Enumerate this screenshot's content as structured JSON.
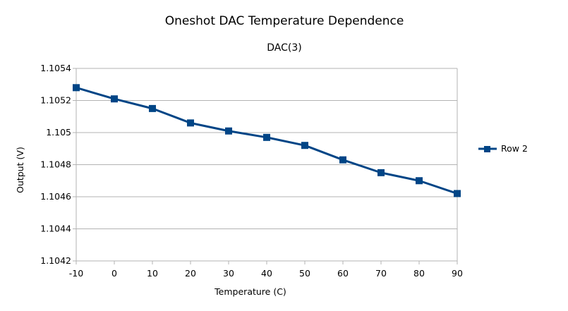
{
  "chart_data": {
    "type": "line",
    "title": "Oneshot DAC Temperature Dependence",
    "subtitle": "DAC(3)",
    "xlabel": "Temperature (C)",
    "ylabel": "Output (V)",
    "x": [
      -10,
      0,
      10,
      20,
      30,
      40,
      50,
      60,
      70,
      80,
      90
    ],
    "xlim": [
      -10,
      90
    ],
    "ylim": [
      1.1042,
      1.1054
    ],
    "x_ticks": [
      -10,
      0,
      10,
      20,
      30,
      40,
      50,
      60,
      70,
      80,
      90
    ],
    "x_tick_labels": [
      "-10",
      "0",
      "10",
      "20",
      "30",
      "40",
      "50",
      "60",
      "70",
      "80",
      "90"
    ],
    "y_ticks": [
      1.1042,
      1.1044,
      1.1046,
      1.1048,
      1.105,
      1.1052,
      1.1054
    ],
    "y_tick_labels": [
      "1.1042",
      "1.1044",
      "1.1046",
      "1.1048",
      "1.105",
      "1.1052",
      "1.1054"
    ],
    "grid": "horizontal",
    "legend_position": "right",
    "series": [
      {
        "name": "Row 2",
        "color": "#004586",
        "marker": "square",
        "values": [
          1.10528,
          1.10521,
          1.10515,
          1.10506,
          1.10501,
          1.10497,
          1.10492,
          1.10483,
          1.10475,
          1.1047,
          1.10462
        ]
      }
    ]
  }
}
